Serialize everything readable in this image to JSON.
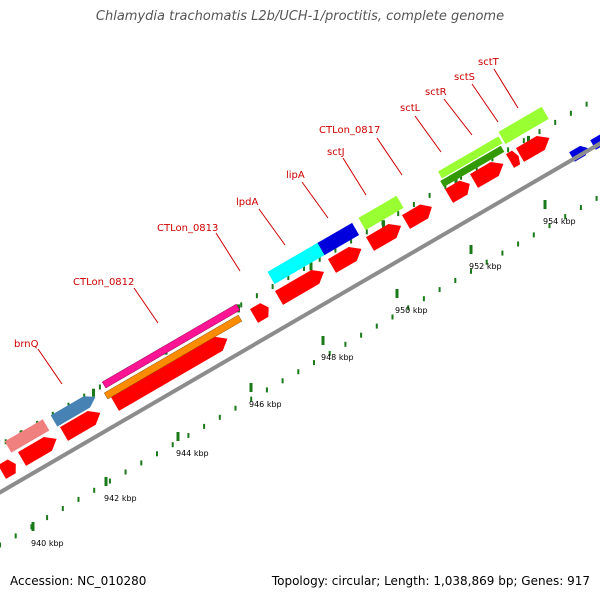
{
  "title": "Chlamydia trachomatis L2b/UCH-1/proctitis, complete genome",
  "footer": {
    "accession": "Accession: NC_010280",
    "stats": "Topology: circular; Length: 1,038,869 bp; Genes: 917"
  },
  "colors": {
    "backbone": "#8c8c8c",
    "tick": "#1a7a1a",
    "gene_label": "#cc0000",
    "cds_red": "#ff0000",
    "pink": "#ff1493",
    "orange": "#ff8c00",
    "steelblue": "#4682b4",
    "cyan": "#00ffff",
    "blue": "#0000dd",
    "lime": "#99ff33",
    "green": "#339900",
    "salmon": "#f08080"
  },
  "kbp_labels": [
    "940 kbp",
    "942 kbp",
    "944 kbp",
    "946 kbp",
    "948 kbp",
    "950 kbp",
    "952 kbp",
    "954 kbp"
  ],
  "gene_labels": [
    "brnQ",
    "CTLon_0812",
    "CTLon_0813",
    "lpdA",
    "lipA",
    "sctJ",
    "CTLon_0817",
    "sctL",
    "sctR",
    "sctS",
    "sctT"
  ]
}
